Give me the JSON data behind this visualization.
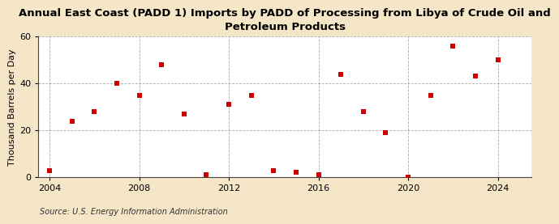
{
  "title": "Annual East Coast (PADD 1) Imports by PADD of Processing from Libya of Crude Oil and\nPetroleum Products",
  "ylabel": "Thousand Barrels per Day",
  "source": "Source: U.S. Energy Information Administration",
  "years": [
    2004,
    2005,
    2006,
    2007,
    2008,
    2009,
    2010,
    2011,
    2012,
    2013,
    2014,
    2015,
    2016,
    2017,
    2018,
    2019,
    2020,
    2021,
    2022,
    2023,
    2024
  ],
  "values": [
    3,
    24,
    28,
    40,
    35,
    48,
    27,
    1,
    31,
    35,
    3,
    2,
    1,
    44,
    28,
    19,
    0,
    35,
    56,
    43,
    50
  ],
  "marker_color": "#cc0000",
  "marker_size": 25,
  "background_color": "#f5e6c8",
  "plot_bg_color": "#ffffff",
  "grid_color": "#888888",
  "xlim": [
    2003.5,
    2025.5
  ],
  "ylim": [
    0,
    60
  ],
  "yticks": [
    0,
    20,
    40,
    60
  ],
  "xticks": [
    2004,
    2008,
    2012,
    2016,
    2020,
    2024
  ],
  "title_fontsize": 9.5,
  "ylabel_fontsize": 8,
  "source_fontsize": 7,
  "tick_fontsize": 8
}
